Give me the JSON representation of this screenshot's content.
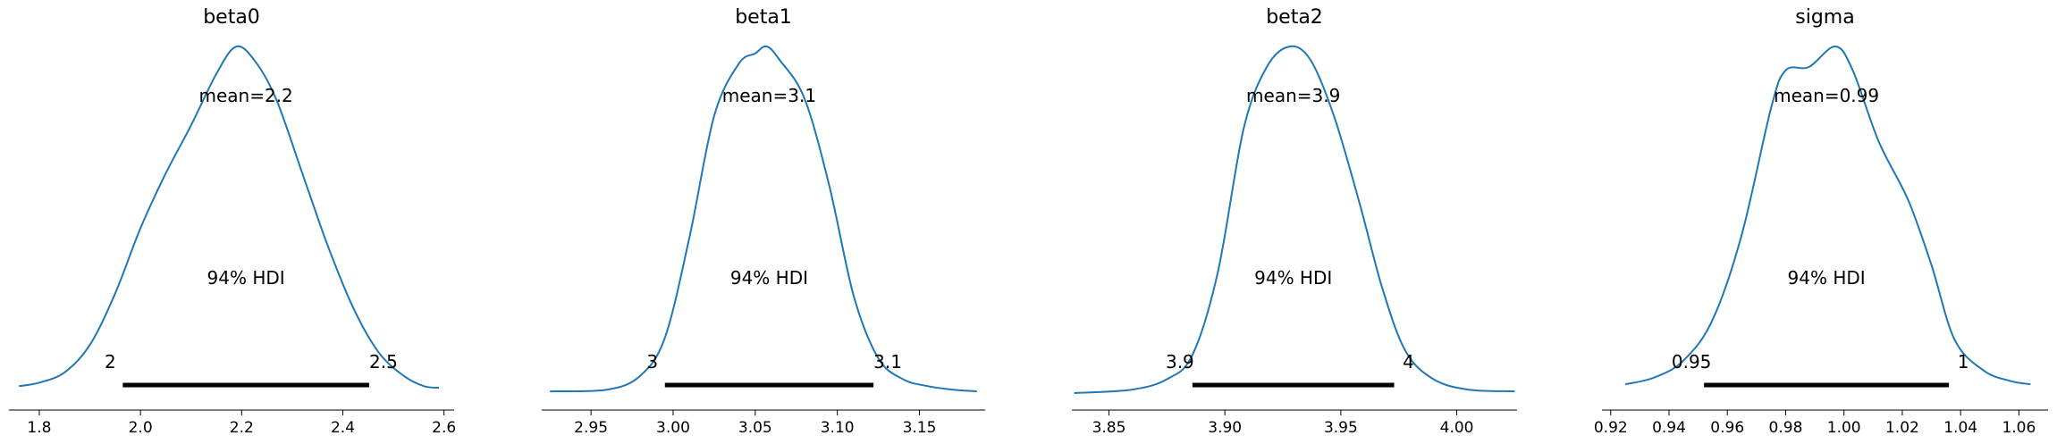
{
  "chart_data": [
    {
      "type": "area",
      "title": "beta0",
      "mean_label": "mean=2.2",
      "hdi_label": "94% HDI",
      "hdi": {
        "low": 1.965,
        "high": 2.452,
        "low_label": "2",
        "high_label": "2.5"
      },
      "xlim": [
        1.74,
        2.62
      ],
      "xticks": [
        1.8,
        2.0,
        2.2,
        2.4,
        2.6
      ],
      "xtick_labels": [
        "1.8",
        "2.0",
        "2.2",
        "2.4",
        "2.6"
      ],
      "x": [
        1.76,
        1.8,
        1.85,
        1.9,
        1.95,
        2.0,
        2.05,
        2.1,
        2.15,
        2.19,
        2.23,
        2.27,
        2.32,
        2.37,
        2.42,
        2.47,
        2.52,
        2.56,
        2.59
      ],
      "density": [
        0.01,
        0.02,
        0.05,
        0.13,
        0.28,
        0.47,
        0.63,
        0.77,
        0.92,
        1.0,
        0.95,
        0.84,
        0.63,
        0.42,
        0.24,
        0.11,
        0.04,
        0.01,
        0.005
      ]
    },
    {
      "type": "area",
      "title": "beta1",
      "mean_label": "mean=3.1",
      "hdi_label": "94% HDI",
      "hdi": {
        "low": 2.995,
        "high": 3.122,
        "low_label": "3",
        "high_label": "3.1"
      },
      "xlim": [
        2.92,
        3.19
      ],
      "xticks": [
        2.95,
        3.0,
        3.05,
        3.1,
        3.15
      ],
      "xtick_labels": [
        "2.95",
        "3.00",
        "3.05",
        "3.10",
        "3.15"
      ],
      "x": [
        2.925,
        2.96,
        2.98,
        2.995,
        3.01,
        3.025,
        3.04,
        3.05,
        3.057,
        3.065,
        3.08,
        3.095,
        3.11,
        3.125,
        3.14,
        3.155,
        3.17,
        3.185
      ],
      "density": [
        0.005,
        0.01,
        0.05,
        0.16,
        0.45,
        0.8,
        0.95,
        0.98,
        1.0,
        0.96,
        0.85,
        0.6,
        0.28,
        0.1,
        0.04,
        0.02,
        0.01,
        0.005
      ]
    },
    {
      "type": "area",
      "title": "beta2",
      "mean_label": "mean=3.9",
      "hdi_label": "94% HDI",
      "hdi": {
        "low": 3.886,
        "high": 3.973,
        "low_label": "3.9",
        "high_label": "4"
      },
      "xlim": [
        3.834,
        4.026
      ],
      "xticks": [
        3.85,
        3.9,
        3.95,
        4.0
      ],
      "xtick_labels": [
        "3.85",
        "3.90",
        "3.95",
        "4.00"
      ],
      "x": [
        3.835,
        3.86,
        3.875,
        3.886,
        3.897,
        3.908,
        3.918,
        3.928,
        3.937,
        3.947,
        3.958,
        3.968,
        3.978,
        3.99,
        4.005,
        4.025
      ],
      "density": [
        0.0,
        0.01,
        0.04,
        0.11,
        0.35,
        0.76,
        0.94,
        1.0,
        0.96,
        0.8,
        0.55,
        0.3,
        0.12,
        0.04,
        0.01,
        0.005
      ]
    },
    {
      "type": "area",
      "title": "sigma",
      "mean_label": "mean=0.99",
      "hdi_label": "94% HDI",
      "hdi": {
        "low": 0.952,
        "high": 1.036,
        "low_label": "0.95",
        "high_label": "1"
      },
      "xlim": [
        0.917,
        1.07
      ],
      "xticks": [
        0.92,
        0.94,
        0.96,
        0.98,
        1.0,
        1.02,
        1.04,
        1.06
      ],
      "xtick_labels": [
        "0.92",
        "0.94",
        "0.96",
        "0.98",
        "1.00",
        "1.02",
        "1.04",
        "1.06"
      ],
      "x": [
        0.925,
        0.935,
        0.945,
        0.955,
        0.965,
        0.975,
        0.98,
        0.988,
        0.997,
        1.003,
        1.012,
        1.022,
        1.03,
        1.038,
        1.048,
        1.057,
        1.064
      ],
      "density": [
        0.01,
        0.03,
        0.08,
        0.2,
        0.45,
        0.82,
        0.93,
        0.94,
        1.0,
        0.93,
        0.72,
        0.55,
        0.36,
        0.14,
        0.05,
        0.02,
        0.01
      ]
    }
  ],
  "colors": {
    "kde": "#1f77b4",
    "hdi_bar": "#000000",
    "axis": "#000000"
  }
}
